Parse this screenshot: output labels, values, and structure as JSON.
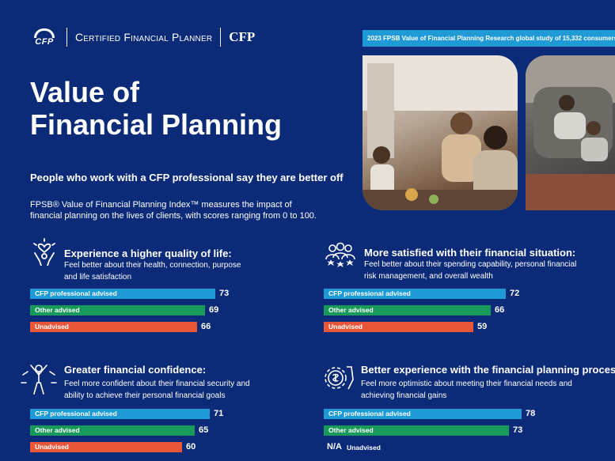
{
  "header": {
    "logo_mark": "CFP",
    "brand_name": "Certified Financial Planner",
    "brand_short": "CFP"
  },
  "banner": "2023 FPSB Value of Financial Planning Research global study of 15,332 consumers",
  "title_line1": "Value of",
  "title_line2": "Financial Planning",
  "subtitle": "People who work with a CFP professional say they are better off",
  "description_line1": "FPSB® Value of Financial Planning Index™ measures the impact of",
  "description_line2": "financial planning on the lives of clients, with scores ranging from 0 to 100.",
  "colors": {
    "cfp": "#1f9ad6",
    "other": "#189a5a",
    "unadvised": "#e8563a",
    "background": "#0b2a78"
  },
  "chart_data": [
    {
      "type": "bar",
      "title": "Experience a higher quality of life:",
      "subtitle_line1": "Feel better about their health, connection, purpose",
      "subtitle_line2": "and life satisfaction",
      "icon": "heart-person-icon",
      "categories": [
        "CFP professional advised",
        "Other advised",
        "Unadvised"
      ],
      "values": [
        73,
        69,
        66
      ],
      "xlim": [
        0,
        100
      ]
    },
    {
      "type": "bar",
      "title": "More satisfied with their financial situation:",
      "subtitle_line1": "Feel better about their spending capability, personal financial",
      "subtitle_line2": "risk management, and overall wealth",
      "icon": "group-stars-icon",
      "categories": [
        "CFP professional advised",
        "Other advised",
        "Unadvised"
      ],
      "values": [
        72,
        66,
        59
      ],
      "xlim": [
        0,
        100
      ]
    },
    {
      "type": "bar",
      "title": "Greater financial confidence:",
      "subtitle_line1": "Feel more confident about their financial security and",
      "subtitle_line2": "ability to achieve their personal financial goals",
      "icon": "confident-person-icon",
      "categories": [
        "CFP professional advised",
        "Other advised",
        "Unadvised"
      ],
      "values": [
        71,
        65,
        60
      ],
      "xlim": [
        0,
        100
      ]
    },
    {
      "type": "bar",
      "title": "Better experience with the financial planning process:",
      "subtitle_line1": "Feel more optimistic about meeting their financial needs and",
      "subtitle_line2": "achieving financial gains",
      "icon": "gear-dollar-hand-icon",
      "categories": [
        "CFP professional advised",
        "Other advised",
        "Unadvised"
      ],
      "values": [
        78,
        73,
        null
      ],
      "na_label": "N/A",
      "xlim": [
        0,
        100
      ]
    }
  ]
}
